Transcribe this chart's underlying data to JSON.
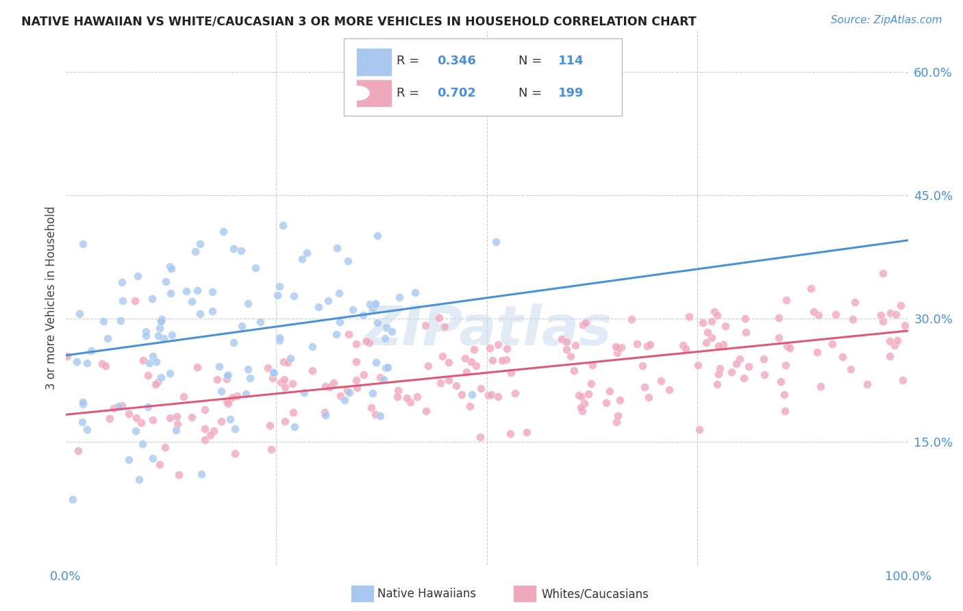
{
  "title": "NATIVE HAWAIIAN VS WHITE/CAUCASIAN 3 OR MORE VEHICLES IN HOUSEHOLD CORRELATION CHART",
  "source": "Source: ZipAtlas.com",
  "ylabel": "3 or more Vehicles in Household",
  "xlim": [
    0,
    1
  ],
  "ylim": [
    0,
    0.65
  ],
  "y_ticks": [
    0.15,
    0.3,
    0.45,
    0.6
  ],
  "y_tick_labels": [
    "15.0%",
    "30.0%",
    "45.0%",
    "60.0%"
  ],
  "legend_R1": "0.346",
  "legend_N1": "114",
  "legend_R2": "0.702",
  "legend_N2": "199",
  "color_blue": "#A8C8F0",
  "color_pink": "#F0A8BC",
  "color_blue_text": "#4A90D9",
  "color_pink_text": "#E05878",
  "watermark": "ZIPatlas",
  "blue_line_x": [
    0.0,
    1.0
  ],
  "blue_line_y": [
    0.255,
    0.395
  ],
  "pink_line_x": [
    0.0,
    1.0
  ],
  "pink_line_y": [
    0.183,
    0.285
  ],
  "background_color": "#FFFFFF",
  "grid_color": "#CCCCCC"
}
